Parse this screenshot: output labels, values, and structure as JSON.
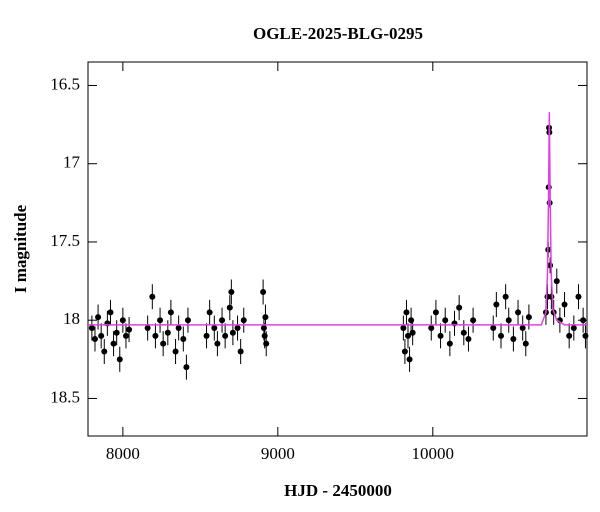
{
  "chart_data": {
    "type": "scatter",
    "title": "OGLE-2025-BLG-0295",
    "xlabel": "HJD - 2450000",
    "ylabel": "I magnitude",
    "xlim": [
      7775,
      10995
    ],
    "ylim": [
      16.35,
      18.74
    ],
    "y_inverted": true,
    "xticks": [
      8000,
      9000,
      10000
    ],
    "yticks": [
      16.5,
      17,
      17.5,
      18,
      18.5
    ],
    "series": [
      {
        "kind": "points",
        "color": "#000000",
        "x": [
          7800,
          7820,
          7840,
          7860,
          7880,
          7900,
          7920,
          7940,
          7960,
          7980,
          8000,
          8020,
          8040,
          8160,
          8190,
          8210,
          8240,
          8260,
          8290,
          8310,
          8340,
          8360,
          8390,
          8410,
          8420,
          8540,
          8560,
          8590,
          8610,
          8640,
          8660,
          8690,
          8700,
          8710,
          8740,
          8760,
          8780,
          8905,
          8910,
          8915,
          8920,
          8925,
          9810,
          9820,
          9830,
          9840,
          9850,
          9860,
          9870,
          9990,
          10020,
          10050,
          10080,
          10110,
          10140,
          10170,
          10200,
          10230,
          10260,
          10390,
          10410,
          10440,
          10470,
          10490,
          10520,
          10550,
          10580,
          10600,
          10620,
          10730,
          10740,
          10745,
          10748,
          10750,
          10752,
          10754,
          10757,
          10765,
          10780,
          10800,
          10820,
          10850,
          10880,
          10910,
          10940,
          10970,
          10985
        ],
        "values": [
          18.05,
          18.12,
          17.98,
          18.1,
          18.2,
          18.02,
          17.95,
          18.15,
          18.08,
          18.25,
          18.0,
          18.1,
          18.06,
          18.05,
          17.85,
          18.1,
          18.0,
          18.15,
          18.08,
          17.95,
          18.2,
          18.05,
          18.12,
          18.3,
          18.0,
          18.1,
          17.95,
          18.05,
          18.15,
          18.0,
          18.1,
          17.92,
          17.82,
          18.08,
          18.05,
          18.2,
          18.0,
          17.82,
          18.05,
          18.1,
          17.98,
          18.15,
          18.05,
          18.2,
          17.95,
          18.1,
          18.25,
          18.0,
          18.08,
          18.05,
          17.95,
          18.1,
          18.0,
          18.15,
          18.02,
          17.92,
          18.08,
          18.12,
          18.0,
          18.05,
          17.9,
          18.1,
          17.85,
          18.0,
          18.12,
          17.95,
          18.05,
          18.15,
          17.98,
          17.95,
          17.85,
          17.55,
          17.15,
          16.77,
          16.8,
          17.25,
          17.65,
          17.85,
          17.95,
          17.75,
          18.0,
          17.9,
          18.1,
          18.05,
          17.85,
          18.0,
          18.1
        ],
        "errors": [
          0.08,
          0.08,
          0.08,
          0.08,
          0.08,
          0.08,
          0.08,
          0.08,
          0.08,
          0.08,
          0.08,
          0.08,
          0.08,
          0.08,
          0.08,
          0.08,
          0.08,
          0.08,
          0.08,
          0.08,
          0.08,
          0.08,
          0.08,
          0.08,
          0.08,
          0.08,
          0.08,
          0.08,
          0.08,
          0.08,
          0.08,
          0.08,
          0.08,
          0.08,
          0.08,
          0.08,
          0.08,
          0.08,
          0.08,
          0.08,
          0.08,
          0.08,
          0.08,
          0.08,
          0.08,
          0.08,
          0.08,
          0.08,
          0.08,
          0.08,
          0.08,
          0.08,
          0.08,
          0.08,
          0.08,
          0.08,
          0.08,
          0.08,
          0.08,
          0.08,
          0.08,
          0.08,
          0.08,
          0.08,
          0.08,
          0.08,
          0.08,
          0.08,
          0.08,
          0.08,
          0.08,
          0.05,
          0.03,
          0.03,
          0.03,
          0.03,
          0.05,
          0.08,
          0.08,
          0.08,
          0.08,
          0.08,
          0.08,
          0.08,
          0.08,
          0.08,
          0.08
        ]
      },
      {
        "kind": "line",
        "color": "#e040e0",
        "x": [
          7775,
          10700,
          10730,
          10740,
          10747,
          10752,
          10757,
          10764,
          10775,
          10800,
          10850,
          10995
        ],
        "values": [
          18.03,
          18.03,
          17.95,
          17.7,
          17.2,
          16.67,
          17.2,
          17.7,
          17.93,
          18.0,
          18.03,
          18.03
        ]
      }
    ]
  }
}
